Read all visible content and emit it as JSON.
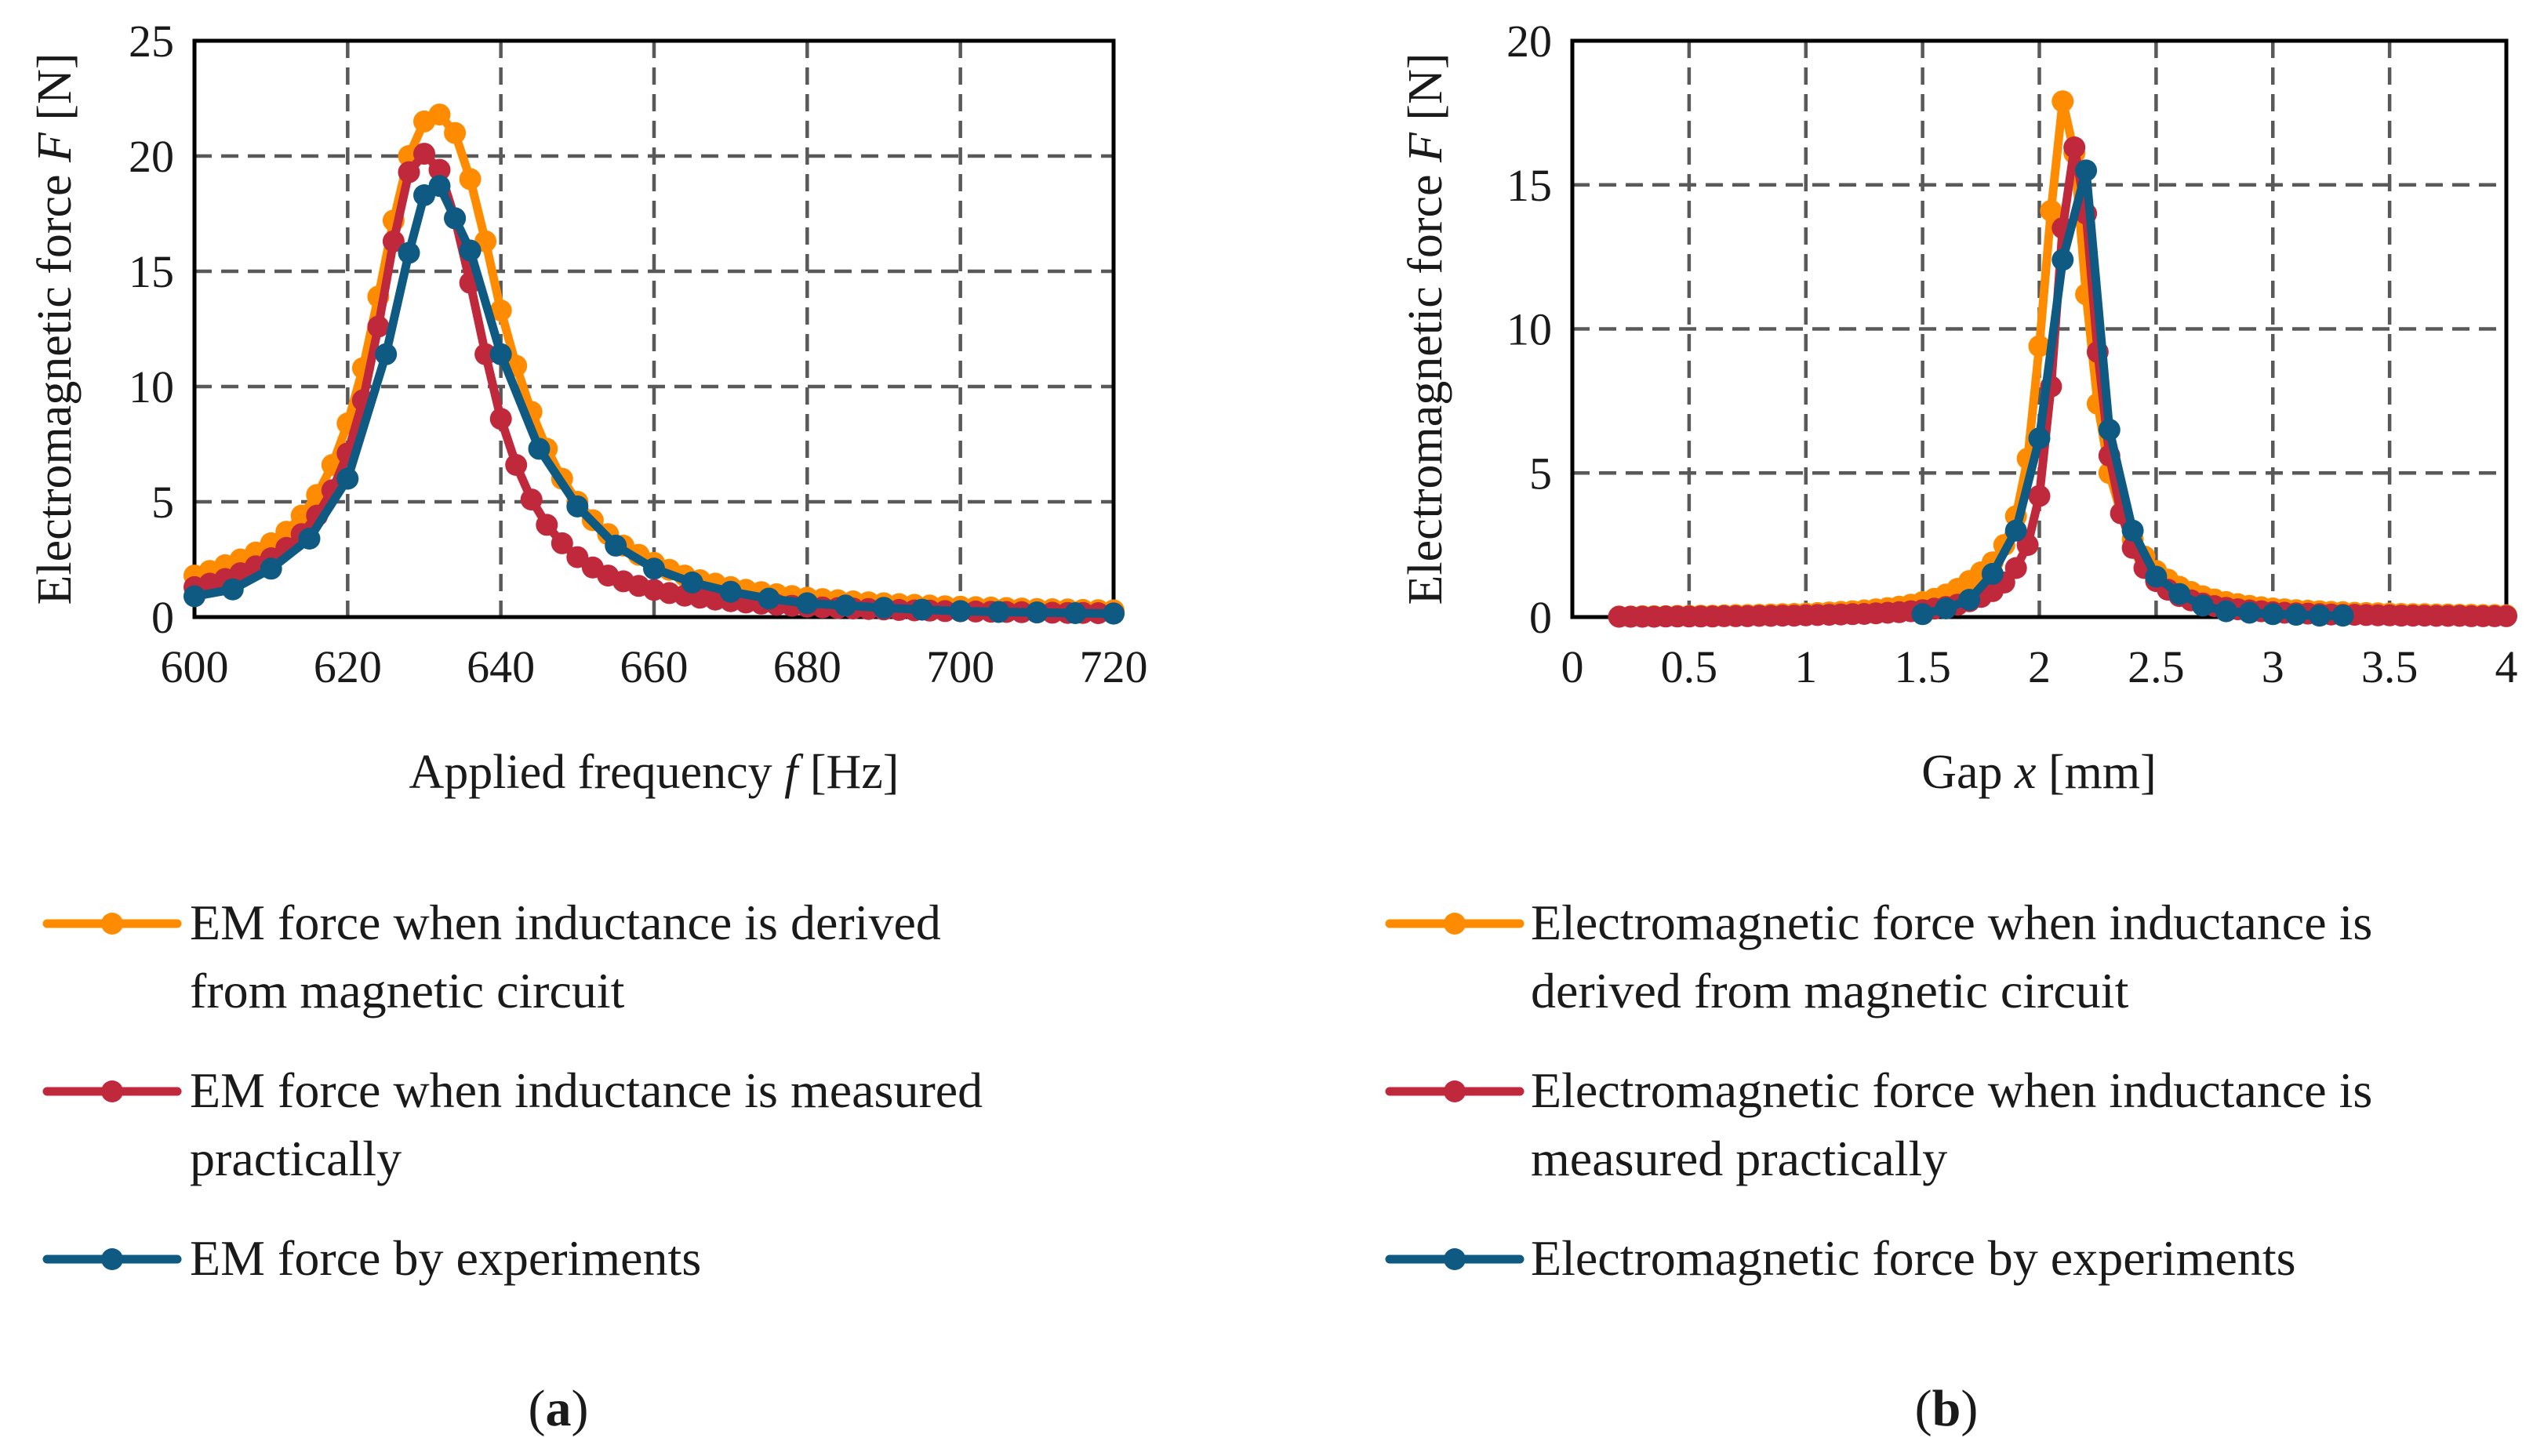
{
  "colors": {
    "derived": "#FF8C00",
    "measured": "#C0283C",
    "experiment": "#0F5A82",
    "grid": "#595959",
    "axis": "#000000"
  },
  "chart_data": [
    {
      "id": "a",
      "type": "line",
      "panel_label": "a",
      "xlabel": {
        "prefix": "Applied frequency ",
        "var": "f",
        "suffix": " [Hz]"
      },
      "ylabel": {
        "prefix": "Electromagnetic force ",
        "var": "F",
        "suffix": " [N]"
      },
      "xlim": [
        600,
        720
      ],
      "ylim": [
        0,
        25
      ],
      "xticks": [
        600,
        620,
        640,
        660,
        680,
        700,
        720
      ],
      "yticks": [
        0,
        5,
        10,
        15,
        20,
        25
      ],
      "grid": true,
      "legend_position": "below",
      "series": [
        {
          "name": "EM force when inductance is derived from magnetic circuit",
          "legend_lines": [
            "EM force when inductance is derived",
            "from magnetic circuit"
          ],
          "color_key": "derived",
          "x": [
            600,
            602,
            604,
            606,
            608,
            610,
            612,
            614,
            616,
            618,
            620,
            622,
            624,
            626,
            628,
            630,
            632,
            634,
            636,
            638,
            640,
            642,
            644,
            646,
            648,
            650,
            652,
            654,
            656,
            658,
            660,
            662,
            664,
            666,
            668,
            670,
            672,
            674,
            676,
            678,
            680,
            682,
            684,
            686,
            688,
            690,
            692,
            694,
            696,
            698,
            700,
            702,
            704,
            706,
            708,
            710,
            712,
            714,
            716,
            718,
            720
          ],
          "y": [
            1.8,
            2.0,
            2.25,
            2.5,
            2.8,
            3.2,
            3.7,
            4.4,
            5.3,
            6.6,
            8.4,
            10.8,
            13.9,
            17.2,
            20.0,
            21.5,
            21.8,
            21.0,
            19.0,
            16.3,
            13.3,
            10.9,
            8.9,
            7.3,
            6.0,
            5.0,
            4.2,
            3.6,
            3.1,
            2.7,
            2.35,
            2.05,
            1.8,
            1.6,
            1.45,
            1.3,
            1.18,
            1.08,
            0.99,
            0.91,
            0.84,
            0.78,
            0.73,
            0.68,
            0.64,
            0.6,
            0.56,
            0.53,
            0.5,
            0.47,
            0.45,
            0.43,
            0.41,
            0.39,
            0.37,
            0.35,
            0.34,
            0.33,
            0.31,
            0.3,
            0.29
          ]
        },
        {
          "name": "EM force when inductance is measured practically",
          "legend_lines": [
            "EM force when inductance is measured",
            "practically"
          ],
          "color_key": "measured",
          "x": [
            600,
            602,
            604,
            606,
            608,
            610,
            612,
            614,
            616,
            618,
            620,
            622,
            624,
            626,
            628,
            630,
            632,
            634,
            636,
            638,
            640,
            642,
            644,
            646,
            648,
            650,
            652,
            654,
            656,
            658,
            660,
            662,
            664,
            666,
            668,
            670,
            672,
            674,
            676,
            678,
            680,
            682,
            684,
            686,
            688,
            690,
            692,
            694,
            696,
            698,
            700,
            702,
            704,
            706,
            708,
            710,
            712,
            714,
            716,
            718,
            720
          ],
          "y": [
            1.3,
            1.45,
            1.65,
            1.9,
            2.2,
            2.55,
            3.0,
            3.6,
            4.4,
            5.5,
            7.1,
            9.4,
            12.6,
            16.3,
            19.3,
            20.1,
            19.4,
            17.3,
            14.5,
            11.4,
            8.6,
            6.6,
            5.1,
            4.0,
            3.2,
            2.6,
            2.15,
            1.8,
            1.55,
            1.35,
            1.18,
            1.04,
            0.93,
            0.84,
            0.76,
            0.69,
            0.63,
            0.58,
            0.53,
            0.49,
            0.45,
            0.42,
            0.39,
            0.37,
            0.35,
            0.33,
            0.31,
            0.29,
            0.28,
            0.26,
            0.25,
            0.24,
            0.23,
            0.22,
            0.21,
            0.2,
            0.19,
            0.18,
            0.18,
            0.17,
            0.16
          ]
        },
        {
          "name": "EM force by experiments",
          "legend_lines": [
            "EM force by experiments"
          ],
          "color_key": "experiment",
          "x": [
            600,
            605,
            610,
            615,
            620,
            625,
            628,
            630,
            632,
            634,
            636,
            640,
            645,
            650,
            655,
            660,
            665,
            670,
            675,
            680,
            685,
            690,
            695,
            700,
            705,
            710,
            715,
            720
          ],
          "y": [
            0.9,
            1.2,
            2.1,
            3.4,
            6.0,
            11.4,
            15.8,
            18.3,
            18.7,
            17.3,
            15.9,
            11.4,
            7.3,
            4.8,
            3.1,
            2.1,
            1.5,
            1.1,
            0.8,
            0.6,
            0.5,
            0.4,
            0.32,
            0.26,
            0.22,
            0.2,
            0.17,
            0.15
          ]
        }
      ]
    },
    {
      "id": "b",
      "type": "line",
      "panel_label": "b",
      "xlabel": {
        "prefix": "Gap ",
        "var": "x",
        "suffix": " [mm]"
      },
      "ylabel": {
        "prefix": "Electromagnetic force ",
        "var": "F",
        "suffix": " [N]"
      },
      "xlim": [
        0,
        4
      ],
      "ylim": [
        0,
        20
      ],
      "xticks": [
        0,
        0.5,
        1,
        1.5,
        2,
        2.5,
        3,
        3.5,
        4
      ],
      "xtick_labels": [
        "0",
        "0.5",
        "1",
        "1.5",
        "2",
        "2.5",
        "3",
        "3.5",
        "4"
      ],
      "yticks": [
        0,
        5,
        10,
        15,
        20
      ],
      "grid": true,
      "legend_position": "below",
      "series": [
        {
          "name": "Electromagnetic force when inductance is derived from magnetic circuit",
          "legend_lines": [
            "Electromagnetic force when inductance is",
            "derived from magnetic circuit"
          ],
          "color_key": "derived",
          "x": [
            0.2,
            0.25,
            0.3,
            0.35,
            0.4,
            0.45,
            0.5,
            0.55,
            0.6,
            0.65,
            0.7,
            0.75,
            0.8,
            0.85,
            0.9,
            0.95,
            1.0,
            1.05,
            1.1,
            1.15,
            1.2,
            1.25,
            1.3,
            1.35,
            1.4,
            1.45,
            1.5,
            1.55,
            1.6,
            1.65,
            1.7,
            1.75,
            1.8,
            1.85,
            1.9,
            1.95,
            2.0,
            2.05,
            2.1,
            2.15,
            2.2,
            2.25,
            2.3,
            2.35,
            2.4,
            2.45,
            2.5,
            2.55,
            2.6,
            2.65,
            2.7,
            2.75,
            2.8,
            2.85,
            2.9,
            2.95,
            3.0,
            3.05,
            3.1,
            3.15,
            3.2,
            3.25,
            3.3,
            3.35,
            3.4,
            3.45,
            3.5,
            3.55,
            3.6,
            3.65,
            3.7,
            3.75,
            3.8,
            3.85,
            3.9,
            3.95,
            4.0
          ],
          "y": [
            0.02,
            0.02,
            0.03,
            0.03,
            0.03,
            0.04,
            0.04,
            0.05,
            0.05,
            0.06,
            0.07,
            0.07,
            0.08,
            0.09,
            0.1,
            0.11,
            0.12,
            0.14,
            0.16,
            0.18,
            0.2,
            0.23,
            0.27,
            0.31,
            0.36,
            0.43,
            0.52,
            0.63,
            0.78,
            0.98,
            1.25,
            1.55,
            1.9,
            2.5,
            3.5,
            5.5,
            9.4,
            14.1,
            17.9,
            16.1,
            11.2,
            7.4,
            5.0,
            3.6,
            2.7,
            2.1,
            1.6,
            1.3,
            1.05,
            0.87,
            0.72,
            0.61,
            0.52,
            0.45,
            0.39,
            0.34,
            0.3,
            0.27,
            0.24,
            0.22,
            0.2,
            0.18,
            0.17,
            0.15,
            0.14,
            0.13,
            0.12,
            0.11,
            0.1,
            0.1,
            0.09,
            0.09,
            0.08,
            0.08,
            0.07,
            0.07,
            0.06
          ]
        },
        {
          "name": "Electromagnetic force when inductance is measured practically",
          "legend_lines": [
            "Electromagnetic force when inductance is",
            "measured practically"
          ],
          "color_key": "measured",
          "x": [
            0.2,
            0.25,
            0.3,
            0.35,
            0.4,
            0.45,
            0.5,
            0.55,
            0.6,
            0.65,
            0.7,
            0.75,
            0.8,
            0.85,
            0.9,
            0.95,
            1.0,
            1.05,
            1.1,
            1.15,
            1.2,
            1.25,
            1.3,
            1.35,
            1.4,
            1.45,
            1.5,
            1.55,
            1.6,
            1.65,
            1.7,
            1.75,
            1.8,
            1.85,
            1.9,
            1.95,
            2.0,
            2.05,
            2.1,
            2.15,
            2.2,
            2.25,
            2.3,
            2.35,
            2.4,
            2.45,
            2.5,
            2.55,
            2.6,
            2.65,
            2.7,
            2.75,
            2.8,
            2.85,
            2.9,
            2.95,
            3.0,
            3.05,
            3.1,
            3.15,
            3.2,
            3.25,
            3.3,
            3.35,
            3.4,
            3.45,
            3.5,
            3.55,
            3.6,
            3.65,
            3.7,
            3.75,
            3.8,
            3.85,
            3.9,
            3.95,
            4.0
          ],
          "y": [
            0.01,
            0.01,
            0.01,
            0.01,
            0.02,
            0.02,
            0.02,
            0.02,
            0.02,
            0.03,
            0.03,
            0.03,
            0.04,
            0.04,
            0.05,
            0.05,
            0.06,
            0.07,
            0.08,
            0.09,
            0.1,
            0.11,
            0.13,
            0.15,
            0.17,
            0.2,
            0.24,
            0.29,
            0.35,
            0.43,
            0.55,
            0.7,
            0.9,
            1.2,
            1.7,
            2.5,
            4.2,
            8.0,
            13.5,
            16.3,
            14.0,
            9.2,
            5.6,
            3.6,
            2.4,
            1.7,
            1.25,
            0.95,
            0.73,
            0.58,
            0.47,
            0.38,
            0.32,
            0.27,
            0.23,
            0.2,
            0.17,
            0.15,
            0.13,
            0.12,
            0.1,
            0.09,
            0.08,
            0.08,
            0.07,
            0.06,
            0.06,
            0.05,
            0.05,
            0.05,
            0.04,
            0.04,
            0.04,
            0.03,
            0.03,
            0.03,
            0.03
          ]
        },
        {
          "name": "Electromagnetic force by experiments",
          "legend_lines": [
            "Electromagnetic force by experiments"
          ],
          "color_key": "experiment",
          "x": [
            1.5,
            1.6,
            1.7,
            1.8,
            1.9,
            2.0,
            2.1,
            2.2,
            2.3,
            2.4,
            2.5,
            2.6,
            2.7,
            2.8,
            2.9,
            3.0,
            3.1,
            3.2,
            3.3
          ],
          "y": [
            0.1,
            0.3,
            0.6,
            1.5,
            3.0,
            6.2,
            12.4,
            15.5,
            6.5,
            3.0,
            1.4,
            0.8,
            0.4,
            0.2,
            0.15,
            0.1,
            0.08,
            0.05,
            0.05
          ]
        }
      ]
    }
  ]
}
